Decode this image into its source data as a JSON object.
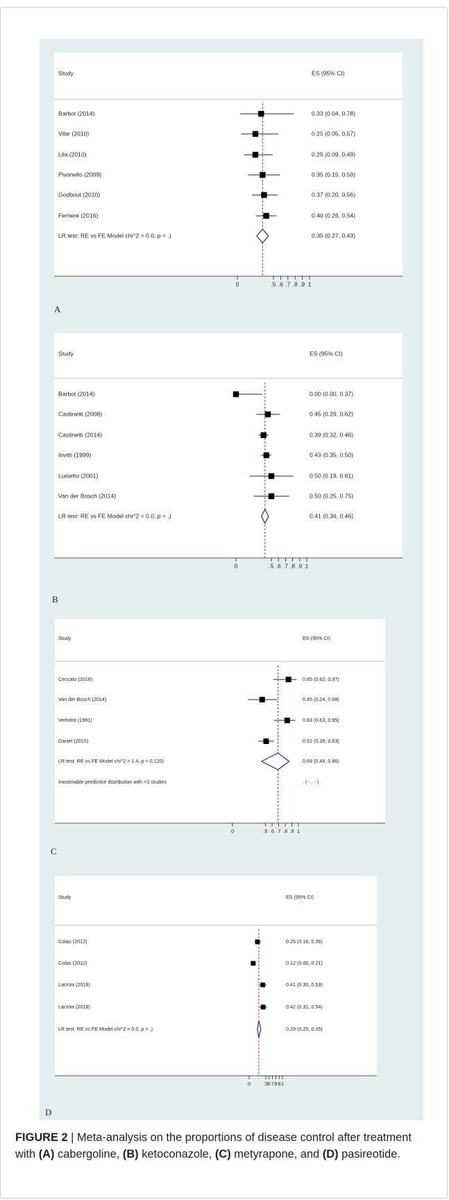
{
  "figure": {
    "panels": [
      {
        "letter": "A",
        "header_study": "Study",
        "header_es": "ES (95% CI)",
        "rows": [
          {
            "label": "Barbot  (2014)",
            "es": 0.33,
            "lo": 0.04,
            "hi": 0.78,
            "text": "0.33 (0.04, 0.78)"
          },
          {
            "label": "Vilar (2010)",
            "es": 0.25,
            "lo": 0.05,
            "hi": 0.57,
            "text": "0.25 (0.05, 0.57)"
          },
          {
            "label": "Lila (2010)",
            "es": 0.25,
            "lo": 0.09,
            "hi": 0.49,
            "text": "0.25 (0.09, 0.49)"
          },
          {
            "label": "Pivonello (2009)",
            "es": 0.35,
            "lo": 0.15,
            "hi": 0.59,
            "text": "0.35 (0.15, 0.59)"
          },
          {
            "label": "Godbout (2010)",
            "es": 0.37,
            "lo": 0.2,
            "hi": 0.56,
            "text": "0.37 (0.20, 0.56)"
          },
          {
            "label": "Ferriere (2016)",
            "es": 0.4,
            "lo": 0.26,
            "hi": 0.54,
            "text": "0.40 (0.26, 0.54)"
          }
        ],
        "pooled": {
          "label": "LR test: RE vs FE Model chi^2 = 0.0, p = .)",
          "es": 0.35,
          "lo": 0.27,
          "hi": 0.43,
          "text": "0.35 (0.27, 0.43)"
        },
        "extra": null,
        "ticks": [
          "0",
          ".5",
          ".6",
          ".7",
          ".8",
          ".9",
          "1"
        ]
      },
      {
        "letter": "B",
        "header_study": "Study",
        "header_es": "ES (95% CI)",
        "rows": [
          {
            "label": "Barbot  (2014)",
            "es": 0.0,
            "lo": 0.0,
            "hi": 0.37,
            "text": "0.00 (0.00, 0.37)"
          },
          {
            "label": "Castinetti (2008)",
            "es": 0.45,
            "lo": 0.29,
            "hi": 0.62,
            "text": "0.45 (0.29, 0.62)"
          },
          {
            "label": "Castinetti (2014)",
            "es": 0.39,
            "lo": 0.32,
            "hi": 0.46,
            "text": "0.39 (0.32, 0.46)"
          },
          {
            "label": "Invitti (1999)",
            "es": 0.43,
            "lo": 0.35,
            "hi": 0.5,
            "text": "0.43 (0.35, 0.50)"
          },
          {
            "label": "Luisetto  (2001)",
            "es": 0.5,
            "lo": 0.19,
            "hi": 0.81,
            "text": "0.50 (0.19, 0.81)"
          },
          {
            "label": "Van der Bosch  (2014)",
            "es": 0.5,
            "lo": 0.25,
            "hi": 0.75,
            "text": "0.50 (0.25, 0.75)"
          }
        ],
        "pooled": {
          "label": "LR test: RE vs FE Model chi^2 = 0.0, p = .)",
          "es": 0.41,
          "lo": 0.36,
          "hi": 0.46,
          "text": "0.41 (0.36, 0.46)"
        },
        "extra": null,
        "ticks": [
          "0",
          ".5",
          ".6",
          ".7",
          ".8",
          ".9",
          "1"
        ]
      },
      {
        "letter": "C",
        "header_study": "Study",
        "header_es": "ES (95% CI)",
        "rows": [
          {
            "label": "Ceccato (2018)",
            "es": 0.85,
            "lo": 0.62,
            "hi": 0.97,
            "text": "0.85 (0.62, 0.97)"
          },
          {
            "label": "Van der Bosch  (2014)",
            "es": 0.45,
            "lo": 0.24,
            "hi": 0.68,
            "text": "0.45 (0.24, 0.68)"
          },
          {
            "label": "Verhelst (1991)",
            "es": 0.83,
            "lo": 0.63,
            "hi": 0.95,
            "text": "0.83 (0.63, 0.95)"
          },
          {
            "label": "Daniel  (2015)",
            "es": 0.51,
            "lo": 0.39,
            "hi": 0.63,
            "text": "0.51 (0.39, 0.63)"
          }
        ],
        "pooled": {
          "label": "LR test: RE vs FE Model chi^2 = 1.4, p = 0.120)",
          "es": 0.69,
          "lo": 0.44,
          "hi": 0.86,
          "text": "0.69 (0.44, 0.86)"
        },
        "extra": {
          "label": "Inestimable predictive distribution with <3 studies",
          "text": ".     (  - ,  -  )"
        },
        "ticks": [
          "0",
          ".5",
          ".6",
          ".7",
          ".8",
          ".9",
          "1"
        ]
      },
      {
        "letter": "D",
        "header_study": "Study",
        "header_es": "ES (95% CI)",
        "rows": [
          {
            "label": "Colao (2012)",
            "es": 0.25,
            "lo": 0.16,
            "hi": 0.36,
            "text": "0.25 (0.16, 0.36)"
          },
          {
            "label": "Colao (2012)",
            "es": 0.12,
            "lo": 0.06,
            "hi": 0.21,
            "text": "0.12 (0.06, 0.21)"
          },
          {
            "label": "Lacroix  (2018)",
            "es": 0.41,
            "lo": 0.3,
            "hi": 0.53,
            "text": "0.41 (0.30, 0.53)"
          },
          {
            "label": "Lacroix  (2018)",
            "es": 0.42,
            "lo": 0.31,
            "hi": 0.54,
            "text": "0.42 (0.31, 0.54)"
          }
        ],
        "pooled": {
          "label": "LR test: RE vs FE Model chi^2 = 0.0, p = .)",
          "es": 0.29,
          "lo": 0.25,
          "hi": 0.35,
          "text": "0.29 (0.25, 0.35)"
        },
        "extra": null,
        "ticks": [
          "0",
          ".5",
          "6",
          "7",
          "8",
          "9",
          "1"
        ]
      }
    ]
  },
  "caption": {
    "label": "FIGURE 2",
    "separator": " | ",
    "text_1": "Meta-analysis on the proportions of disease control after treatment with ",
    "a": "(A)",
    "text_a": " cabergoline, ",
    "b": "(B)",
    "text_b": " ketoconazole, ",
    "c": "(C)",
    "text_c": " metyrapone, and ",
    "d": "(D)",
    "text_d": " pasireotide."
  },
  "colors": {
    "figure_background": "#e6eff0",
    "reference_line": "#c0392b",
    "diamond": "#2b2e7a",
    "text": "#231f20"
  }
}
